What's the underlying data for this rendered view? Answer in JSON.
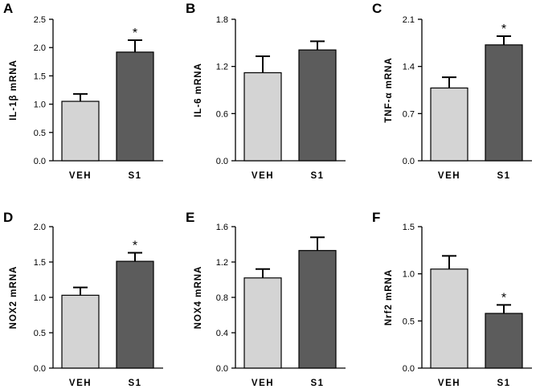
{
  "chart_data": [
    {
      "type": "bar",
      "panel": "A",
      "ylabel": "IL-1β mRNA",
      "categories": [
        "VEH",
        "S1"
      ],
      "values": [
        1.05,
        1.92
      ],
      "errors": [
        0.13,
        0.21
      ],
      "significant": [
        false,
        true
      ],
      "sig_marker": "*",
      "ylim": [
        0,
        2.5
      ],
      "ticks": [
        "0.0",
        "0.5",
        "1.0",
        "1.5",
        "2.0",
        "2.5"
      ]
    },
    {
      "type": "bar",
      "panel": "B",
      "ylabel": "IL-6 mRNA",
      "categories": [
        "VEH",
        "S1"
      ],
      "values": [
        1.12,
        1.41
      ],
      "errors": [
        0.21,
        0.11
      ],
      "significant": [
        false,
        false
      ],
      "sig_marker": "*",
      "ylim": [
        0,
        1.8
      ],
      "ticks": [
        "0.0",
        "0.6",
        "1.2",
        "1.8"
      ]
    },
    {
      "type": "bar",
      "panel": "C",
      "ylabel": "TNF-α mRNA",
      "categories": [
        "VEH",
        "S1"
      ],
      "values": [
        1.08,
        1.72
      ],
      "errors": [
        0.16,
        0.13
      ],
      "significant": [
        false,
        true
      ],
      "sig_marker": "*",
      "ylim": [
        0,
        2.1
      ],
      "ticks": [
        "0.0",
        "0.7",
        "1.4",
        "2.1"
      ]
    },
    {
      "type": "bar",
      "panel": "D",
      "ylabel": "NOX2 mRNA",
      "categories": [
        "VEH",
        "S1"
      ],
      "values": [
        1.03,
        1.51
      ],
      "errors": [
        0.11,
        0.12
      ],
      "significant": [
        false,
        true
      ],
      "sig_marker": "*",
      "ylim": [
        0,
        2.0
      ],
      "ticks": [
        "0.0",
        "0.5",
        "1.0",
        "1.5",
        "2.0"
      ]
    },
    {
      "type": "bar",
      "panel": "E",
      "ylabel": "NOX4 mRNA",
      "categories": [
        "VEH",
        "S1"
      ],
      "values": [
        1.02,
        1.33
      ],
      "errors": [
        0.1,
        0.15
      ],
      "significant": [
        false,
        false
      ],
      "sig_marker": "*",
      "ylim": [
        0,
        1.6
      ],
      "ticks": [
        "0.0",
        "0.4",
        "0.8",
        "1.2",
        "1.6"
      ]
    },
    {
      "type": "bar",
      "panel": "F",
      "ylabel": "Nrf2 mRNA",
      "categories": [
        "VEH",
        "S1"
      ],
      "values": [
        1.05,
        0.58
      ],
      "errors": [
        0.14,
        0.09
      ],
      "significant": [
        false,
        true
      ],
      "sig_marker": "*",
      "ylim": [
        0,
        1.5
      ],
      "ticks": [
        "0.0",
        "0.5",
        "1.0",
        "1.5"
      ]
    }
  ],
  "colors": {
    "veh_bar": "#d4d4d4",
    "s1_bar": "#5c5c5c",
    "axis": "#000000"
  }
}
